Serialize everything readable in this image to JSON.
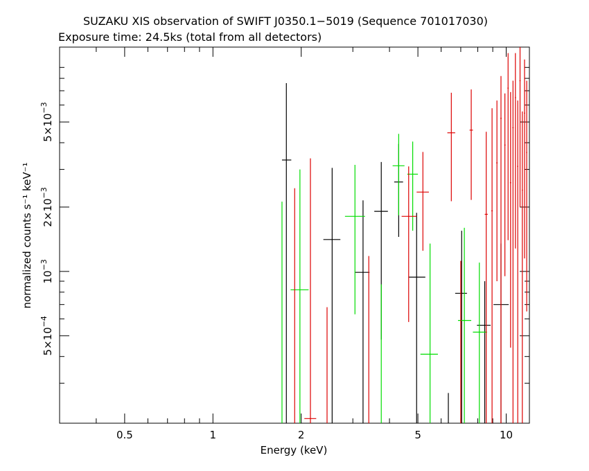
{
  "chart_data": {
    "type": "scatter",
    "title": "SUZAKU XIS observation of SWIFT J0350.1−5019 (Sequence 701017030)",
    "subtitle": "Exposure time: 24.5ks (total from all detectors)",
    "xlabel": "Energy (keV)",
    "ylabel": "normalized counts s⁻¹ keV⁻¹",
    "x_scale": "log",
    "y_scale": "log",
    "xlim": [
      0.3,
      12.0
    ],
    "ylim": [
      0.000195,
      0.0112
    ],
    "x_ticks": [
      {
        "value": 0.5,
        "label": "0.5"
      },
      {
        "value": 1,
        "label": "1"
      },
      {
        "value": 2,
        "label": "2"
      },
      {
        "value": 5,
        "label": "5"
      },
      {
        "value": 10,
        "label": "10"
      }
    ],
    "y_ticks": [
      {
        "value": 0.0005,
        "mant": "5×10",
        "exp": "−4"
      },
      {
        "value": 0.001,
        "mant": "10",
        "exp": "−3"
      },
      {
        "value": 0.002,
        "mant": "2×10",
        "exp": "−3"
      },
      {
        "value": 0.005,
        "mant": "5×10",
        "exp": "−3"
      }
    ],
    "series": [
      {
        "color": "#000000",
        "points": [
          {
            "x": 1.78,
            "xlo": 1.72,
            "xhi": 1.85,
            "y": 0.00332,
            "ylo": 0.000195,
            "yhi": 0.0076
          },
          {
            "x": 2.55,
            "xlo": 2.38,
            "xhi": 2.72,
            "y": 0.00141,
            "ylo": 0.000195,
            "yhi": 0.00305
          },
          {
            "x": 3.25,
            "xlo": 3.05,
            "xhi": 3.42,
            "y": 0.00099,
            "ylo": 0.000195,
            "yhi": 0.00215
          },
          {
            "x": 3.75,
            "xlo": 3.55,
            "xhi": 3.95,
            "y": 0.00191,
            "ylo": 0.00048,
            "yhi": 0.00325
          },
          {
            "x": 4.3,
            "xlo": 4.15,
            "xhi": 4.45,
            "y": 0.00262,
            "ylo": 0.00145,
            "yhi": 0.00395
          },
          {
            "x": 4.95,
            "xlo": 4.65,
            "xhi": 5.3,
            "y": 0.00094,
            "ylo": 0.000195,
            "yhi": 0.00188
          },
          {
            "x": 6.35,
            "xlo": 6.35,
            "xhi": 6.35,
            "y": 0.00024,
            "ylo": 0.000195,
            "yhi": 0.00027
          },
          {
            "x": 7.05,
            "xlo": 6.7,
            "xhi": 7.35,
            "y": 0.00079,
            "ylo": 0.000195,
            "yhi": 0.00155
          },
          {
            "x": 8.45,
            "xlo": 7.95,
            "xhi": 8.85,
            "y": 0.00056,
            "ylo": 0.000195,
            "yhi": 0.0009
          },
          {
            "x": 9.6,
            "xlo": 9.05,
            "xhi": 10.2,
            "y": 0.0007,
            "ylo": 0.000195,
            "yhi": 0.00135
          }
        ]
      },
      {
        "color": "#00dd00",
        "points": [
          {
            "x": 1.72,
            "xlo": 1.72,
            "xhi": 1.72,
            "y": 0.00115,
            "ylo": 0.000195,
            "yhi": 0.00212
          },
          {
            "x": 1.98,
            "xlo": 1.84,
            "xhi": 2.12,
            "y": 0.00082,
            "ylo": 0.000195,
            "yhi": 0.003
          },
          {
            "x": 3.05,
            "xlo": 2.82,
            "xhi": 3.3,
            "y": 0.00181,
            "ylo": 0.00063,
            "yhi": 0.00315
          },
          {
            "x": 3.75,
            "xlo": 3.75,
            "xhi": 3.75,
            "y": 0.00045,
            "ylo": 0.000195,
            "yhi": 0.00087
          },
          {
            "x": 4.3,
            "xlo": 4.1,
            "xhi": 4.5,
            "y": 0.00312,
            "ylo": 0.00183,
            "yhi": 0.0044
          },
          {
            "x": 4.8,
            "xlo": 4.6,
            "xhi": 5.0,
            "y": 0.00285,
            "ylo": 0.00155,
            "yhi": 0.00405
          },
          {
            "x": 5.5,
            "xlo": 5.1,
            "xhi": 5.85,
            "y": 0.00041,
            "ylo": 0.000195,
            "yhi": 0.00135
          },
          {
            "x": 7.2,
            "xlo": 6.85,
            "xhi": 7.6,
            "y": 0.00059,
            "ylo": 0.000195,
            "yhi": 0.0016
          },
          {
            "x": 8.1,
            "xlo": 7.7,
            "xhi": 8.6,
            "y": 0.00052,
            "ylo": 0.000195,
            "yhi": 0.0011
          }
        ]
      },
      {
        "color": "#dd0000",
        "points": [
          {
            "x": 1.9,
            "xlo": 1.9,
            "xhi": 1.9,
            "y": 0.0008,
            "ylo": 0.000195,
            "yhi": 0.00245
          },
          {
            "x": 2.15,
            "xlo": 2.05,
            "xhi": 2.25,
            "y": 0.000205,
            "ylo": 0.000195,
            "yhi": 0.00338
          },
          {
            "x": 2.45,
            "xlo": 2.45,
            "xhi": 2.45,
            "y": 0.00035,
            "ylo": 0.000195,
            "yhi": 0.00068
          },
          {
            "x": 3.4,
            "xlo": 3.4,
            "xhi": 3.4,
            "y": 0.00065,
            "ylo": 0.000195,
            "yhi": 0.00118
          },
          {
            "x": 4.65,
            "xlo": 4.4,
            "xhi": 4.95,
            "y": 0.00181,
            "ylo": 0.00058,
            "yhi": 0.0031
          },
          {
            "x": 5.2,
            "xlo": 4.95,
            "xhi": 5.45,
            "y": 0.00235,
            "ylo": 0.00125,
            "yhi": 0.00362
          },
          {
            "x": 6.5,
            "xlo": 6.3,
            "xhi": 6.7,
            "y": 0.00445,
            "ylo": 0.00213,
            "yhi": 0.00685
          },
          {
            "x": 7.6,
            "xlo": 7.5,
            "xhi": 7.7,
            "y": 0.00458,
            "ylo": 0.00216,
            "yhi": 0.0071
          },
          {
            "x": 7.0,
            "xlo": 7.0,
            "xhi": 7.0,
            "y": 0.00055,
            "ylo": 0.000195,
            "yhi": 0.00112
          },
          {
            "x": 8.55,
            "xlo": 8.45,
            "xhi": 8.65,
            "y": 0.00185,
            "ylo": 0.000195,
            "yhi": 0.0045
          },
          {
            "x": 8.95,
            "xlo": 8.9,
            "xhi": 9.0,
            "y": 0.00192,
            "ylo": 0.000195,
            "yhi": 0.0058
          },
          {
            "x": 9.3,
            "xlo": 9.25,
            "xhi": 9.35,
            "y": 0.00322,
            "ylo": 0.0009,
            "yhi": 0.0063
          },
          {
            "x": 9.6,
            "xlo": 9.55,
            "xhi": 9.65,
            "y": 0.0052,
            "ylo": 0.000195,
            "yhi": 0.0082
          },
          {
            "x": 9.9,
            "xlo": 9.85,
            "xhi": 9.95,
            "y": 0.0039,
            "ylo": 0.00095,
            "yhi": 0.0068
          },
          {
            "x": 10.15,
            "xlo": 10.1,
            "xhi": 10.2,
            "y": 0.0072,
            "ylo": 0.0014,
            "yhi": 0.0105
          },
          {
            "x": 10.35,
            "xlo": 10.3,
            "xhi": 10.4,
            "y": 0.0026,
            "ylo": 0.00044,
            "yhi": 0.0069
          },
          {
            "x": 10.55,
            "xlo": 10.5,
            "xhi": 10.6,
            "y": 0.0047,
            "ylo": 0.000195,
            "yhi": 0.0078
          },
          {
            "x": 10.75,
            "xlo": 10.7,
            "xhi": 10.8,
            "y": 0.0065,
            "ylo": 0.00128,
            "yhi": 0.0105
          },
          {
            "x": 10.95,
            "xlo": 10.9,
            "xhi": 11.0,
            "y": 0.0031,
            "ylo": 0.000195,
            "yhi": 0.0063
          },
          {
            "x": 11.15,
            "xlo": 11.1,
            "xhi": 11.2,
            "y": 0.0078,
            "ylo": 0.002,
            "yhi": 0.0112
          },
          {
            "x": 11.35,
            "xlo": 11.3,
            "xhi": 11.4,
            "y": 0.0024,
            "ylo": 0.000195,
            "yhi": 0.0056
          },
          {
            "x": 11.55,
            "xlo": 11.5,
            "xhi": 11.6,
            "y": 0.0055,
            "ylo": 0.00115,
            "yhi": 0.0098
          },
          {
            "x": 11.75,
            "xlo": 11.7,
            "xhi": 11.8,
            "y": 0.0036,
            "ylo": 0.00065,
            "yhi": 0.0078
          }
        ]
      }
    ]
  }
}
